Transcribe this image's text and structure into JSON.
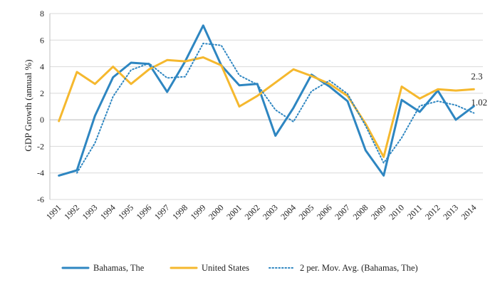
{
  "chart_data": {
    "type": "line",
    "title": "",
    "ylabel": "GDP Growth (annual %)",
    "xlabel": "",
    "ylim": [
      -6,
      8
    ],
    "yticks": [
      -6,
      -4,
      -2,
      0,
      2,
      4,
      6,
      8
    ],
    "grid": "horizontal",
    "legend_position": "bottom",
    "categories": [
      "1991",
      "1992",
      "1993",
      "1994",
      "1995",
      "1996",
      "1997",
      "1998",
      "1999",
      "2000",
      "2001",
      "2002",
      "2003",
      "2004",
      "2005",
      "2006",
      "2007",
      "2008",
      "2009",
      "2010",
      "2011",
      "2012",
      "2013",
      "2014"
    ],
    "series": [
      {
        "name": "Bahamas, The",
        "color": "#2E86C1",
        "style": "solid",
        "values": [
          -4.2,
          -3.8,
          0.3,
          3.2,
          4.3,
          4.2,
          2.1,
          4.4,
          7.1,
          4.1,
          2.6,
          2.7,
          -1.2,
          0.9,
          3.4,
          2.5,
          1.4,
          -2.3,
          -4.2,
          1.5,
          0.6,
          2.2,
          0.0,
          1.02
        ]
      },
      {
        "name": "United States",
        "color": "#F5B82E",
        "style": "solid",
        "values": [
          -0.1,
          3.6,
          2.7,
          4.0,
          2.7,
          3.8,
          4.5,
          4.4,
          4.7,
          4.1,
          1.0,
          1.8,
          2.8,
          3.8,
          3.3,
          2.7,
          1.8,
          -0.3,
          -2.8,
          2.5,
          1.6,
          2.3,
          2.2,
          2.3
        ]
      },
      {
        "name": "2 per. Mov. Avg. (Bahamas, The)",
        "color": "#2E86C1",
        "style": "dotted",
        "values": [
          null,
          -4.0,
          -1.75,
          1.75,
          3.75,
          4.25,
          3.15,
          3.25,
          5.75,
          5.6,
          3.35,
          2.65,
          0.75,
          -0.15,
          2.15,
          2.95,
          1.95,
          -0.45,
          -3.25,
          -1.35,
          1.05,
          1.4,
          1.1,
          0.51
        ]
      }
    ],
    "annotations": [
      {
        "text": "2.3",
        "series": 1,
        "index": 23
      },
      {
        "text": "1.02",
        "series": 0,
        "index": 23
      }
    ]
  }
}
